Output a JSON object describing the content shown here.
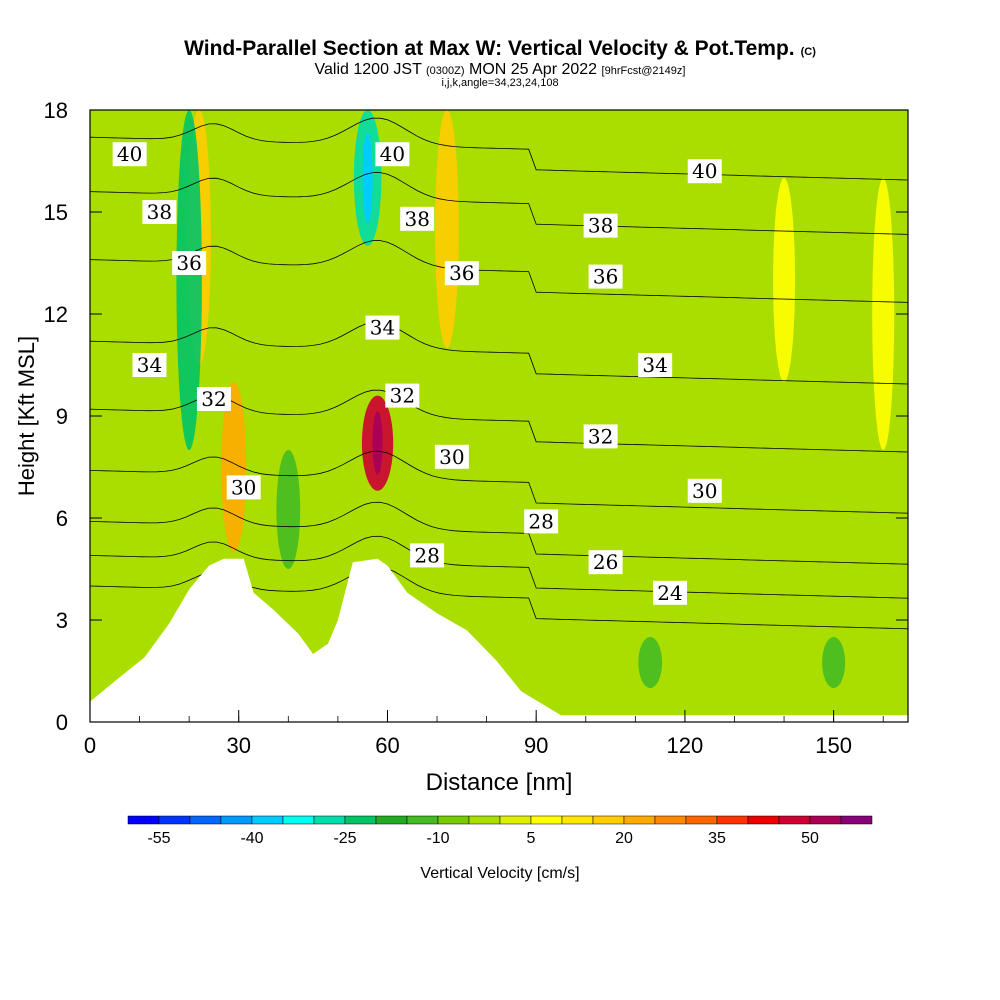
{
  "header": {
    "title": "Wind-Parallel Section at Max W: Vertical Velocity & Pot.Temp.",
    "copyright": "(C)",
    "valid_prefix": "Valid 1200 JST",
    "valid_zulu": "(0300Z)",
    "valid_date": "MON 25 Apr 2022",
    "forecast": "[9hrFcst@2149z]",
    "indices": "i,j,k,angle=34,23,24,108"
  },
  "chart_data": {
    "type": "heatmap",
    "xlabel": "Distance [nm]",
    "ylabel": "Height [Kft MSL]",
    "xlim": [
      0,
      165
    ],
    "ylim": [
      0,
      18
    ],
    "x_ticks": [
      0,
      30,
      60,
      90,
      120,
      150
    ],
    "y_ticks": [
      0,
      3,
      6,
      9,
      12,
      15,
      18
    ],
    "colorbar": {
      "label": "Vertical Velocity [cm/s]",
      "tick_labels": [
        "-55",
        "-40",
        "-25",
        "-10",
        "5",
        "20",
        "35",
        "50"
      ],
      "min": -60,
      "max": 60,
      "colors": [
        "#0000ff",
        "#0033ff",
        "#0066ff",
        "#0099ff",
        "#00ccff",
        "#00ffee",
        "#00ddaa",
        "#00c466",
        "#22aa22",
        "#44bb22",
        "#77cc00",
        "#aadd00",
        "#ddee00",
        "#ffff00",
        "#ffe600",
        "#ffcc00",
        "#ffaa00",
        "#ff8800",
        "#ff6600",
        "#ff3300",
        "#ee0000",
        "#cc0033",
        "#aa0055",
        "#880077"
      ]
    },
    "terrain_top_kft": [
      [
        0,
        0.6
      ],
      [
        5,
        1.2
      ],
      [
        11,
        1.9
      ],
      [
        16,
        2.9
      ],
      [
        20,
        3.9
      ],
      [
        24,
        4.6
      ],
      [
        27,
        4.8
      ],
      [
        31,
        4.8
      ],
      [
        33,
        3.8
      ],
      [
        37,
        3.3
      ],
      [
        42,
        2.6
      ],
      [
        45,
        2.0
      ],
      [
        48,
        2.3
      ],
      [
        50,
        3.0
      ],
      [
        53,
        4.7
      ],
      [
        58,
        4.8
      ],
      [
        60,
        4.6
      ],
      [
        64,
        3.8
      ],
      [
        70,
        3.2
      ],
      [
        76,
        2.7
      ],
      [
        82,
        1.8
      ],
      [
        87,
        0.9
      ],
      [
        95,
        0.2
      ],
      [
        110,
        0.2
      ],
      [
        165,
        0.2
      ]
    ],
    "velocity_features": [
      {
        "x": 58,
        "z_from": 6.8,
        "z_to": 9.6,
        "w": 45
      },
      {
        "x": 29,
        "z_from": 5.0,
        "z_to": 10.0,
        "w": 20
      },
      {
        "x": 22,
        "z_from": 10.5,
        "z_to": 18.0,
        "w": 15
      },
      {
        "x": 72,
        "z_from": 11.0,
        "z_to": 18.0,
        "w": 15
      },
      {
        "x": 20,
        "z_from": 8.0,
        "z_to": 18.0,
        "w": -22
      },
      {
        "x": 56,
        "z_from": 14.0,
        "z_to": 18.0,
        "w": -30
      },
      {
        "x": 40,
        "z_from": 4.5,
        "z_to": 8.0,
        "w": -15
      },
      {
        "x": 113,
        "z_from": 1.0,
        "z_to": 2.5,
        "w": -15
      },
      {
        "x": 150,
        "z_from": 1.0,
        "z_to": 2.5,
        "w": -12
      },
      {
        "x": 160,
        "z_from": 8.0,
        "z_to": 16.0,
        "w": 8
      },
      {
        "x": 140,
        "z_from": 10.0,
        "z_to": 16.0,
        "w": 8
      }
    ],
    "theta_contour_labels": [
      {
        "text": "40",
        "x": 8,
        "y": 16.7
      },
      {
        "text": "40",
        "x": 61,
        "y": 16.7
      },
      {
        "text": "40",
        "x": 124,
        "y": 16.2
      },
      {
        "text": "38",
        "x": 14,
        "y": 15.0
      },
      {
        "text": "38",
        "x": 66,
        "y": 14.8
      },
      {
        "text": "38",
        "x": 103,
        "y": 14.6
      },
      {
        "text": "36",
        "x": 20,
        "y": 13.5
      },
      {
        "text": "36",
        "x": 75,
        "y": 13.2
      },
      {
        "text": "36",
        "x": 104,
        "y": 13.1
      },
      {
        "text": "34",
        "x": 12,
        "y": 10.5
      },
      {
        "text": "34",
        "x": 59,
        "y": 11.6
      },
      {
        "text": "34",
        "x": 114,
        "y": 10.5
      },
      {
        "text": "32",
        "x": 25,
        "y": 9.5
      },
      {
        "text": "32",
        "x": 63,
        "y": 9.6
      },
      {
        "text": "32",
        "x": 103,
        "y": 8.4
      },
      {
        "text": "30",
        "x": 31,
        "y": 6.9
      },
      {
        "text": "30",
        "x": 73,
        "y": 7.8
      },
      {
        "text": "30",
        "x": 124,
        "y": 6.8
      },
      {
        "text": "28",
        "x": 68,
        "y": 4.9
      },
      {
        "text": "28",
        "x": 91,
        "y": 5.9
      },
      {
        "text": "26",
        "x": 104,
        "y": 4.7
      },
      {
        "text": "24",
        "x": 117,
        "y": 3.8
      }
    ]
  }
}
